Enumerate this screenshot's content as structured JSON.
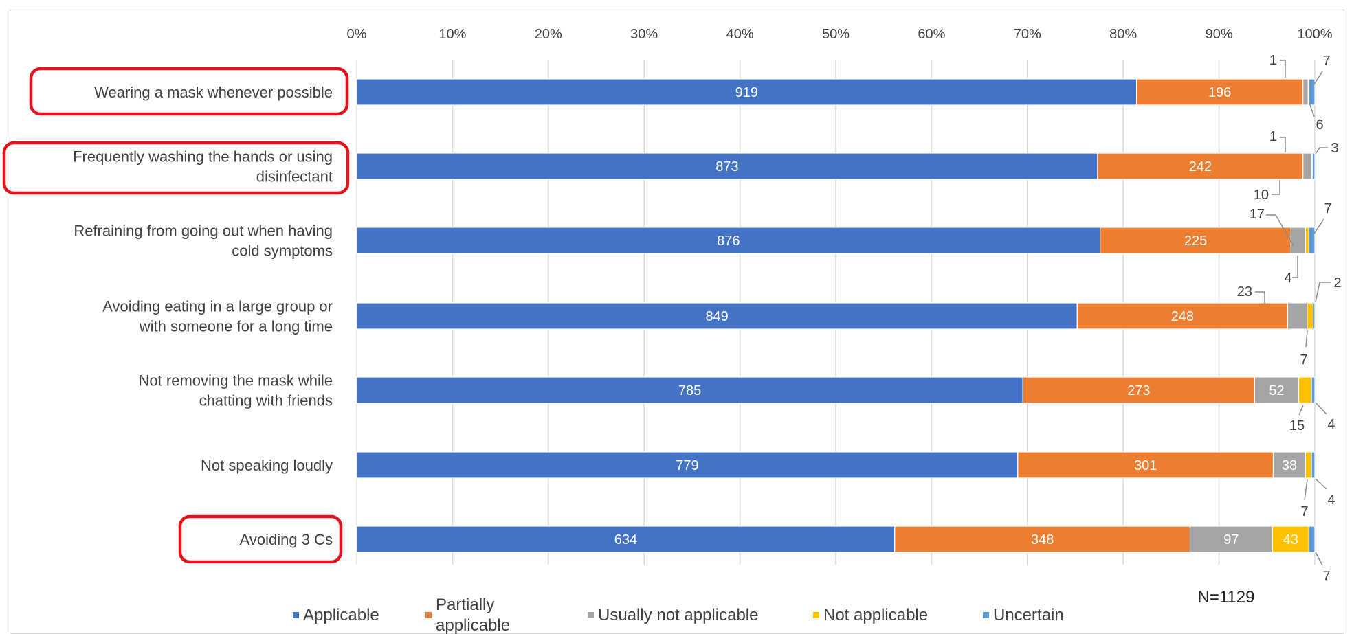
{
  "chart_data": {
    "type": "bar",
    "orientation": "horizontal",
    "stacked": "percent",
    "x_ticks": [
      "0%",
      "10%",
      "20%",
      "30%",
      "40%",
      "50%",
      "60%",
      "70%",
      "80%",
      "90%",
      "100%"
    ],
    "xlim": [
      0,
      100
    ],
    "grid": true,
    "legend_position": "bottom",
    "annotation": "N=1129",
    "categories": [
      "Wearing a mask whenever possible",
      "Frequently washing the hands or using disinfectant",
      "Refraining from going out when having cold symptoms",
      "Avoiding eating in a large group or with someone for a long time",
      "Not removing the mask while chatting with friends",
      "Not speaking loudly",
      "Avoiding 3 Cs"
    ],
    "highlighted_categories": [
      "Wearing a mask whenever possible",
      "Frequently washing the hands or using disinfectant",
      "Avoiding 3 Cs"
    ],
    "series": [
      {
        "name": "Applicable",
        "color": "#4472c4",
        "values": [
          919,
          873,
          876,
          849,
          785,
          779,
          634
        ]
      },
      {
        "name": "Partially applicable",
        "color": "#ed7d31",
        "values": [
          196,
          242,
          225,
          248,
          273,
          301,
          348
        ]
      },
      {
        "name": "Usually not applicable",
        "color": "#a5a5a5",
        "values": [
          6,
          10,
          17,
          23,
          52,
          38,
          97
        ]
      },
      {
        "name": "Not applicable",
        "color": "#ffc000",
        "values": [
          1,
          1,
          4,
          7,
          15,
          7,
          43
        ]
      },
      {
        "name": "Uncertain",
        "color": "#5b9bd5",
        "values": [
          7,
          3,
          7,
          2,
          4,
          4,
          7
        ]
      }
    ]
  }
}
